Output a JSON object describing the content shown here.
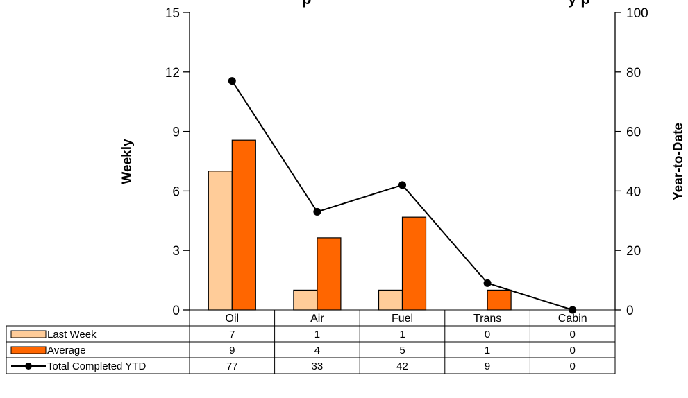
{
  "chart_data": {
    "type": "bar",
    "title": "p",
    "title_right": "y p",
    "categories": [
      "Oil",
      "Air",
      "Fuel",
      "Trans",
      "Cabin"
    ],
    "series": [
      {
        "name": "Last Week",
        "type": "bar",
        "axis": "left",
        "values": [
          7,
          1,
          1,
          0,
          0
        ],
        "color": "#FFCC99"
      },
      {
        "name": "Average",
        "type": "bar",
        "axis": "left",
        "values": [
          8.56,
          3.64,
          4.68,
          1.0,
          0
        ],
        "color": "#FF6600"
      },
      {
        "name": "Total Completed YTD",
        "type": "line",
        "axis": "right",
        "values": [
          77,
          33,
          42,
          9,
          0
        ],
        "color": "#000000"
      }
    ],
    "table_rows": [
      {
        "label": "Last Week",
        "values": [
          "7",
          "1",
          "1",
          "0",
          "0"
        ]
      },
      {
        "label": "Average",
        "values": [
          "9",
          "4",
          "5",
          "1",
          "0"
        ]
      },
      {
        "label": "Total Completed YTD",
        "values": [
          "77",
          "33",
          "42",
          "9",
          "0"
        ]
      }
    ],
    "ylabel": "Weekly",
    "ylabel_right": "Year-to-Date",
    "ylim": [
      0,
      15
    ],
    "ylim_right": [
      0,
      100
    ],
    "yticks": [
      0,
      3,
      6,
      9,
      12,
      15
    ],
    "yticks_right": [
      0,
      20,
      40,
      60,
      80,
      100
    ],
    "grid": false,
    "legend": "data-table"
  }
}
